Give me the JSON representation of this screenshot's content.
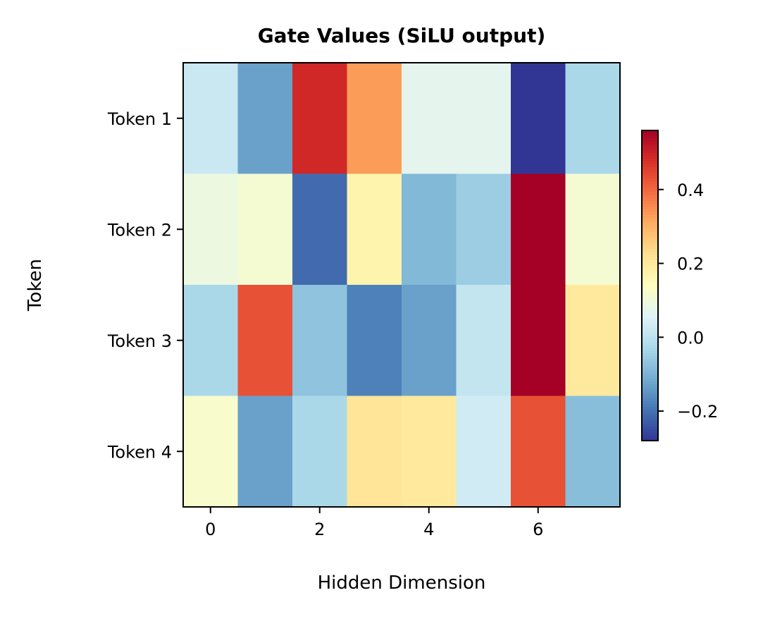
{
  "chart_data": {
    "type": "heatmap",
    "title": "Gate Values (SiLU output)",
    "xlabel": "Hidden Dimension",
    "ylabel": "Token",
    "row_labels": [
      "Token 1",
      "Token 2",
      "Token 3",
      "Token 4"
    ],
    "x_ticks": [
      0,
      2,
      4,
      6
    ],
    "x_tick_labels": [
      "0",
      "2",
      "4",
      "6"
    ],
    "columns": [
      0,
      1,
      2,
      3,
      4,
      5,
      6,
      7
    ],
    "values": [
      [
        0.02,
        -0.13,
        0.49,
        0.33,
        0.07,
        0.07,
        -0.28,
        -0.03
      ],
      [
        0.09,
        0.11,
        -0.21,
        0.17,
        -0.09,
        -0.05,
        0.56,
        0.11
      ],
      [
        -0.03,
        0.43,
        -0.07,
        -0.18,
        -0.13,
        0.01,
        0.56,
        0.2
      ],
      [
        0.12,
        -0.13,
        -0.03,
        0.21,
        0.2,
        0.03,
        0.43,
        -0.08
      ]
    ],
    "colormap": "RdYlBu_r",
    "vmin": -0.28,
    "vmax": 0.56,
    "colorbar": {
      "ticks": [
        -0.2,
        0.0,
        0.2,
        0.4
      ],
      "tick_labels": [
        "−0.2",
        "0.0",
        "0.2",
        "0.4"
      ]
    },
    "grid": false
  }
}
